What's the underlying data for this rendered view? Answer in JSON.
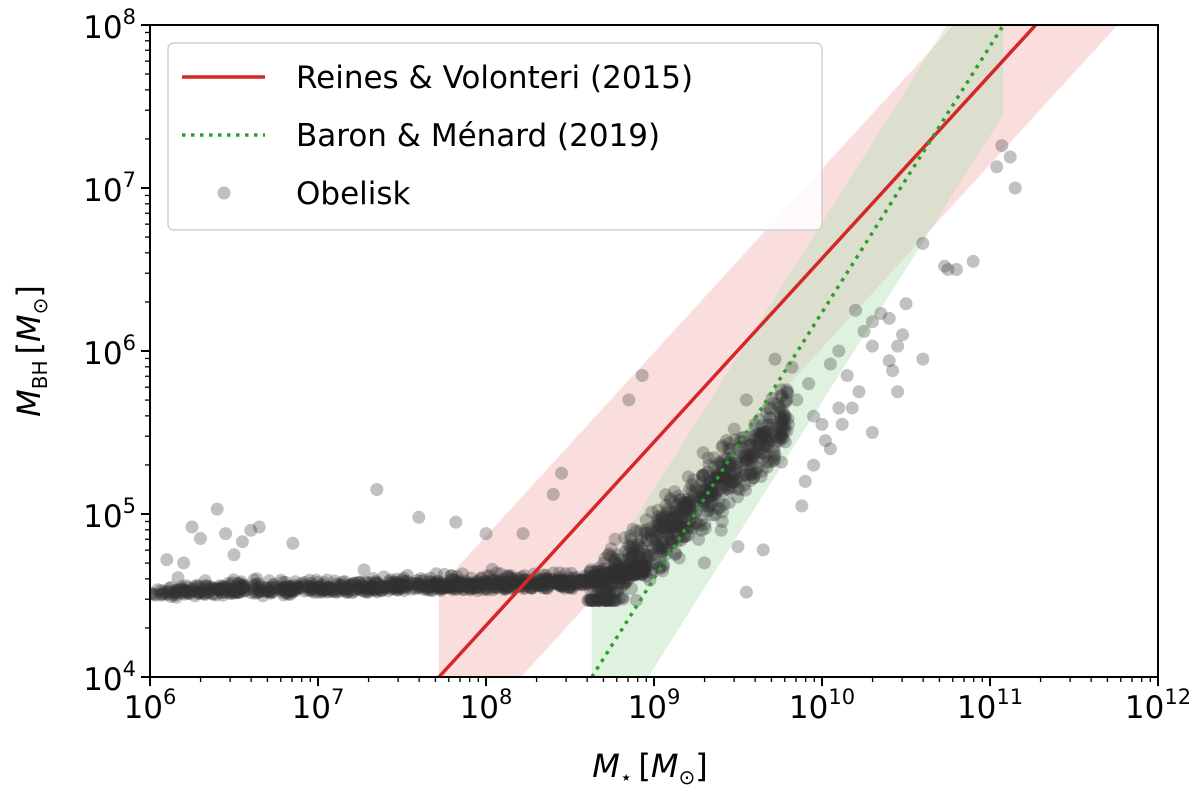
{
  "chart_data": {
    "type": "scatter",
    "xscale": "log",
    "yscale": "log",
    "xlim_exp": [
      6,
      12
    ],
    "ylim_exp": [
      4,
      8
    ],
    "x_ticks": [
      {
        "base": "10",
        "exp": "6"
      },
      {
        "base": "10",
        "exp": "7"
      },
      {
        "base": "10",
        "exp": "8"
      },
      {
        "base": "10",
        "exp": "9"
      },
      {
        "base": "10",
        "exp": "10"
      },
      {
        "base": "10",
        "exp": "11"
      },
      {
        "base": "10",
        "exp": "12"
      }
    ],
    "y_ticks": [
      {
        "base": "10",
        "exp": "4"
      },
      {
        "base": "10",
        "exp": "5"
      },
      {
        "base": "10",
        "exp": "6"
      },
      {
        "base": "10",
        "exp": "7"
      },
      {
        "base": "10",
        "exp": "8"
      }
    ],
    "xlabel": {
      "main": "M",
      "sub": "⋆",
      "unit_open": "[",
      "unit_main": "M",
      "unit_sub": "⊙",
      "unit_close": "]"
    },
    "ylabel": {
      "main": "M",
      "sub": "BH",
      "unit_open": "[",
      "unit_main": "M",
      "unit_sub": "⊙",
      "unit_close": "]"
    },
    "legend": {
      "position": "top-left",
      "entries": [
        {
          "label": "Reines & Volonteri (2015)",
          "style": "solid-line",
          "color": "#d62728"
        },
        {
          "label": "Baron & Ménard (2019)",
          "style": "dotted-line",
          "color": "#2ca02c"
        },
        {
          "label": "Obelisk",
          "style": "marker",
          "color": "#888888"
        }
      ]
    },
    "relations": [
      {
        "name": "Reines & Volonteri (2015)",
        "color": "#d62728",
        "band_color": "#f4b6b6",
        "log_x": [
          7.72,
          12.0
        ],
        "log_y": [
          4.0,
          8.82
        ],
        "band_half_width_dex": 0.55,
        "linestyle": "solid"
      },
      {
        "name": "Baron & Ménard (2019)",
        "color": "#2ca02c",
        "band_color": "#b9e0b9",
        "log_x": [
          8.63,
          11.08
        ],
        "log_y": [
          4.0,
          8.0
        ],
        "band_half_width_dex": 0.55,
        "linestyle": "dotted"
      }
    ],
    "scatter_series": {
      "name": "Obelisk",
      "color": "#333333",
      "alpha": 0.3,
      "outliers": [
        [
          11.07,
          7.26
        ],
        [
          11.12,
          7.19
        ],
        [
          11.04,
          7.13
        ],
        [
          11.15,
          7.0
        ],
        [
          10.6,
          6.66
        ],
        [
          10.8,
          6.5
        ],
        [
          10.9,
          6.55
        ],
        [
          10.75,
          6.5
        ],
        [
          10.73,
          6.52
        ],
        [
          10.5,
          6.29
        ],
        [
          10.4,
          6.2
        ],
        [
          10.48,
          6.1
        ],
        [
          10.35,
          6.23
        ],
        [
          10.45,
          6.03
        ],
        [
          10.6,
          5.95
        ],
        [
          10.3,
          6.18
        ],
        [
          10.2,
          6.25
        ],
        [
          10.25,
          6.12
        ],
        [
          10.3,
          6.03
        ],
        [
          10.4,
          5.94
        ],
        [
          10.1,
          6.0
        ],
        [
          10.15,
          5.85
        ],
        [
          10.05,
          5.92
        ],
        [
          10.22,
          5.75
        ],
        [
          10.18,
          5.65
        ],
        [
          10.3,
          5.5
        ],
        [
          10.42,
          5.88
        ],
        [
          10.45,
          5.75
        ],
        [
          10.05,
          5.4
        ],
        [
          9.95,
          5.3
        ],
        [
          9.9,
          5.2
        ],
        [
          10.0,
          5.55
        ],
        [
          9.85,
          5.7
        ],
        [
          9.8,
          5.55
        ],
        [
          9.75,
          5.45
        ],
        [
          9.92,
          5.8
        ],
        [
          9.72,
          5.95
        ],
        [
          9.68,
          5.65
        ],
        [
          9.82,
          5.9
        ],
        [
          9.6,
          5.55
        ],
        [
          9.55,
          5.7
        ],
        [
          9.65,
          5.5
        ],
        [
          10.1,
          5.65
        ],
        [
          10.02,
          5.45
        ],
        [
          9.95,
          5.6
        ],
        [
          10.12,
          5.55
        ],
        [
          9.88,
          5.05
        ],
        [
          9.65,
          4.78
        ],
        [
          9.55,
          4.52
        ],
        [
          9.4,
          4.9
        ],
        [
          9.5,
          4.8
        ],
        [
          9.3,
          4.7
        ],
        [
          9.15,
          4.73
        ],
        [
          9.05,
          4.82
        ],
        [
          8.95,
          4.9
        ],
        [
          8.93,
          5.85
        ],
        [
          8.85,
          5.7
        ],
        [
          8.45,
          5.25
        ],
        [
          8.4,
          5.12
        ],
        [
          8.22,
          4.88
        ],
        [
          8.0,
          4.88
        ],
        [
          7.82,
          4.95
        ],
        [
          7.6,
          4.98
        ],
        [
          7.35,
          5.15
        ],
        [
          6.85,
          4.82
        ],
        [
          6.65,
          4.92
        ],
        [
          6.5,
          4.75
        ],
        [
          6.25,
          4.92
        ],
        [
          6.4,
          5.03
        ],
        [
          6.45,
          4.88
        ],
        [
          6.55,
          4.83
        ],
        [
          6.6,
          4.9
        ],
        [
          6.3,
          4.85
        ],
        [
          6.2,
          4.7
        ],
        [
          6.1,
          4.72
        ]
      ]
    }
  }
}
